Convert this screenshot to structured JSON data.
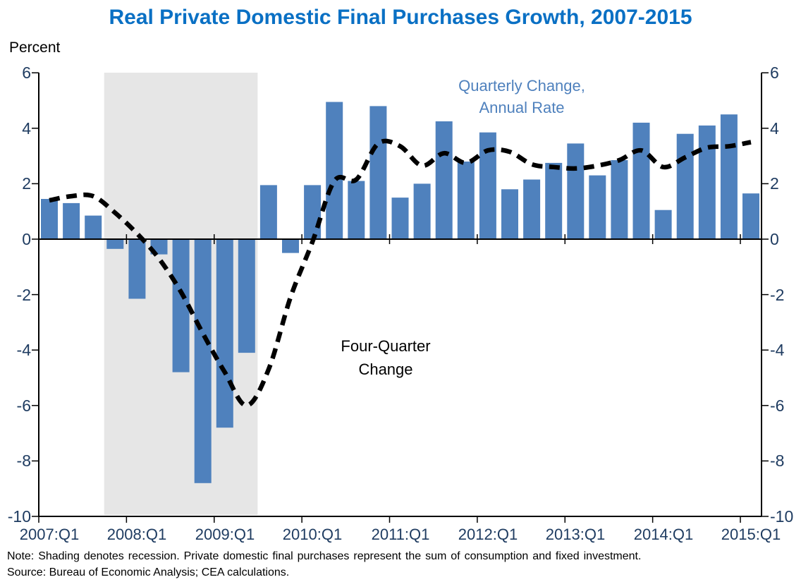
{
  "title": "Real Private Domestic Final Purchases Growth, 2007-2015",
  "y_axis_title": "Percent",
  "annotations": {
    "bar_label_line1": "Quarterly Change,",
    "bar_label_line2": "Annual Rate",
    "line_label_line1": "Four-Quarter",
    "line_label_line2": "Change"
  },
  "note": "Note: Shading denotes recession. Private domestic final purchases represent the sum of consumption and fixed investment.",
  "source": "Source: Bureau of Economic Analysis; CEA calculations.",
  "colors": {
    "title": "#0A70C4",
    "bar": "#4F81BD",
    "line": "#000000",
    "shading": "#E6E6E6",
    "axis_text": "#1F3C61",
    "legend_text": "#4F81BD",
    "axis_line": "#000000"
  },
  "chart_data": {
    "type": "bar",
    "title": "Real Private Domestic Final Purchases Growth, 2007-2015",
    "ylabel": "Percent",
    "ylim": [
      -10,
      6
    ],
    "y_ticks": [
      6,
      4,
      2,
      0,
      -2,
      -4,
      -6,
      -8,
      -10
    ],
    "x_tick_labels": [
      "2007:Q1",
      "2008:Q1",
      "2009:Q1",
      "2010:Q1",
      "2011:Q1",
      "2012:Q1",
      "2013:Q1",
      "2014:Q1",
      "2015:Q1"
    ],
    "grid": false,
    "legend_position": "inside-top-right",
    "categories": [
      "2007:Q1",
      "2007:Q2",
      "2007:Q3",
      "2007:Q4",
      "2008:Q1",
      "2008:Q2",
      "2008:Q3",
      "2008:Q4",
      "2009:Q1",
      "2009:Q2",
      "2009:Q3",
      "2009:Q4",
      "2010:Q1",
      "2010:Q2",
      "2010:Q3",
      "2010:Q4",
      "2011:Q1",
      "2011:Q2",
      "2011:Q3",
      "2011:Q4",
      "2012:Q1",
      "2012:Q2",
      "2012:Q3",
      "2012:Q4",
      "2013:Q1",
      "2013:Q2",
      "2013:Q3",
      "2013:Q4",
      "2014:Q1",
      "2014:Q2",
      "2014:Q3",
      "2014:Q4",
      "2015:Q1"
    ],
    "series": [
      {
        "name": "Quarterly Change, Annual Rate",
        "type": "bar",
        "values": [
          1.45,
          1.3,
          0.85,
          -0.35,
          -2.15,
          -0.55,
          -4.8,
          -8.8,
          -6.8,
          -4.1,
          1.95,
          -0.5,
          1.95,
          4.95,
          2.1,
          4.8,
          1.5,
          2.0,
          4.25,
          2.8,
          3.85,
          1.8,
          2.15,
          2.75,
          3.45,
          2.3,
          2.85,
          4.2,
          1.05,
          3.8,
          4.1,
          4.5,
          1.65
        ]
      },
      {
        "name": "Four-Quarter Change",
        "type": "line",
        "values": [
          1.4,
          1.55,
          1.55,
          0.95,
          0.2,
          -0.7,
          -1.9,
          -3.4,
          -4.8,
          -6.0,
          -4.7,
          -2.1,
          -0.1,
          2.1,
          2.15,
          3.45,
          3.35,
          2.65,
          3.1,
          2.75,
          3.2,
          3.15,
          2.7,
          2.6,
          2.55,
          2.65,
          2.85,
          3.2,
          2.6,
          2.95,
          3.3,
          3.35,
          3.5
        ]
      }
    ],
    "recession_shading": {
      "start_category": "2007:Q4",
      "end_category": "2009:Q2"
    }
  }
}
